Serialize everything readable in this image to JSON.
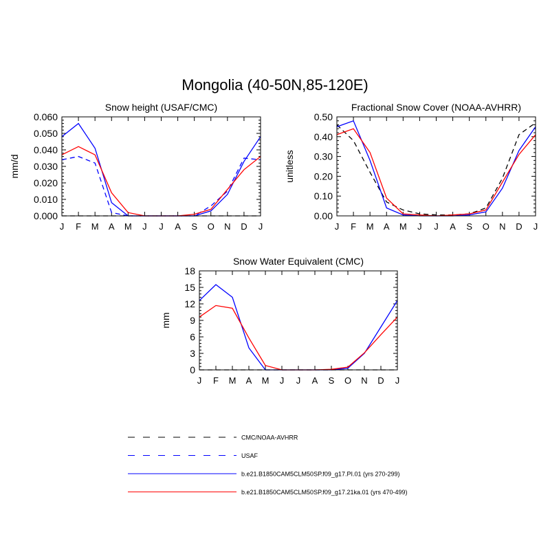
{
  "title": "Mongolia (40-50N,85-120E)",
  "months": [
    "J",
    "F",
    "M",
    "A",
    "M",
    "J",
    "J",
    "A",
    "S",
    "O",
    "N",
    "D",
    "J"
  ],
  "colors": {
    "model1": "#0000ff",
    "model2": "#ff0000",
    "obs": "#000000",
    "usaf": "#0000ff"
  },
  "legend": [
    {
      "label": "CMC/NOAA-AVHRR",
      "color": "#000000",
      "dash": true
    },
    {
      "label": "USAF",
      "color": "#0000ff",
      "dash": true
    },
    {
      "label": "b.e21.B1850CAM5CLM50SP.f09_g17.PI.01 (yrs 270-299)",
      "color": "#0000ff",
      "dash": false
    },
    {
      "label": "b.e21.B1850CAM5CLM50SP.f09_g17.21ka.01 (yrs 470-499)",
      "color": "#ff0000",
      "dash": false
    }
  ],
  "chart_data": [
    {
      "type": "line",
      "title": "Snow height (USAF/CMC)",
      "ylabel": "mm/d",
      "ylim": [
        0,
        0.06
      ],
      "yticks": [
        "0.000",
        "0.010",
        "0.020",
        "0.030",
        "0.040",
        "0.050",
        "0.060"
      ],
      "series": [
        {
          "name": "CMC/NOAA-AVHRR",
          "style": "obs",
          "values": [
            0,
            0,
            0,
            0,
            0,
            0,
            0,
            0,
            0,
            0,
            0,
            0,
            0
          ]
        },
        {
          "name": "USAF",
          "style": "usaf",
          "values": [
            0.034,
            0.036,
            0.032,
            0.002,
            0,
            0,
            0,
            0,
            0,
            0.006,
            0.015,
            0.035,
            0.034
          ]
        },
        {
          "name": "b.e21.B1850CAM5CLM50SP.f09_g17.PI.01 (yrs 270-299)",
          "style": "model1",
          "values": [
            0.048,
            0.056,
            0.041,
            0.008,
            0,
            0,
            0,
            0,
            0,
            0.003,
            0.013,
            0.033,
            0.048
          ]
        },
        {
          "name": "b.e21.B1850CAM5CLM50SP.f09_g17.21ka.01 (yrs 470-499)",
          "style": "model2",
          "values": [
            0.037,
            0.042,
            0.037,
            0.014,
            0.002,
            0,
            0,
            0,
            0.001,
            0.004,
            0.016,
            0.028,
            0.036
          ]
        }
      ]
    },
    {
      "type": "line",
      "title": "Fractional Snow Cover (NOAA-AVHRR)",
      "ylabel": "unitless",
      "ylim": [
        0,
        0.5
      ],
      "yticks": [
        "0.00",
        "0.10",
        "0.20",
        "0.30",
        "0.40",
        "0.50"
      ],
      "series": [
        {
          "name": "CMC/NOAA-AVHRR",
          "style": "obs",
          "values": [
            0.46,
            0.38,
            0.22,
            0.07,
            0.03,
            0.01,
            0.005,
            0.005,
            0.01,
            0.04,
            0.19,
            0.41,
            0.47
          ]
        },
        {
          "name": "b.e21.B1850CAM5CLM50SP.f09_g17.PI.01 (yrs 270-299)",
          "style": "model1",
          "values": [
            0.45,
            0.48,
            0.28,
            0.04,
            0.005,
            0,
            0,
            0,
            0.005,
            0.02,
            0.14,
            0.33,
            0.45
          ]
        },
        {
          "name": "b.e21.B1850CAM5CLM50SP.f09_g17.21ka.01 (yrs 470-499)",
          "style": "model2",
          "values": [
            0.41,
            0.44,
            0.32,
            0.09,
            0.01,
            0.005,
            0,
            0.005,
            0.01,
            0.03,
            0.17,
            0.31,
            0.41
          ]
        }
      ]
    },
    {
      "type": "line",
      "title": "Snow Water Equivalent (CMC)",
      "ylabel": "mm",
      "ylim": [
        0,
        18
      ],
      "yticks": [
        "0",
        "3",
        "6",
        "9",
        "12",
        "15",
        "18"
      ],
      "series": [
        {
          "name": "CMC/NOAA-AVHRR",
          "style": "obs",
          "values": [
            0,
            0,
            0,
            0,
            0,
            0,
            0,
            0,
            0,
            0,
            0,
            0,
            0
          ]
        },
        {
          "name": "b.e21.B1850CAM5CLM50SP.f09_g17.PI.01 (yrs 270-299)",
          "style": "model1",
          "values": [
            12.6,
            15.5,
            13.2,
            4.0,
            0,
            0,
            0,
            0,
            0,
            0.3,
            3.0,
            7.8,
            12.6
          ]
        },
        {
          "name": "b.e21.B1850CAM5CLM50SP.f09_g17.21ka.01 (yrs 470-499)",
          "style": "model2",
          "values": [
            9.6,
            11.7,
            11.2,
            5.8,
            0.8,
            0,
            0,
            0,
            0.1,
            0.5,
            3.1,
            6.4,
            9.6
          ]
        }
      ]
    }
  ]
}
